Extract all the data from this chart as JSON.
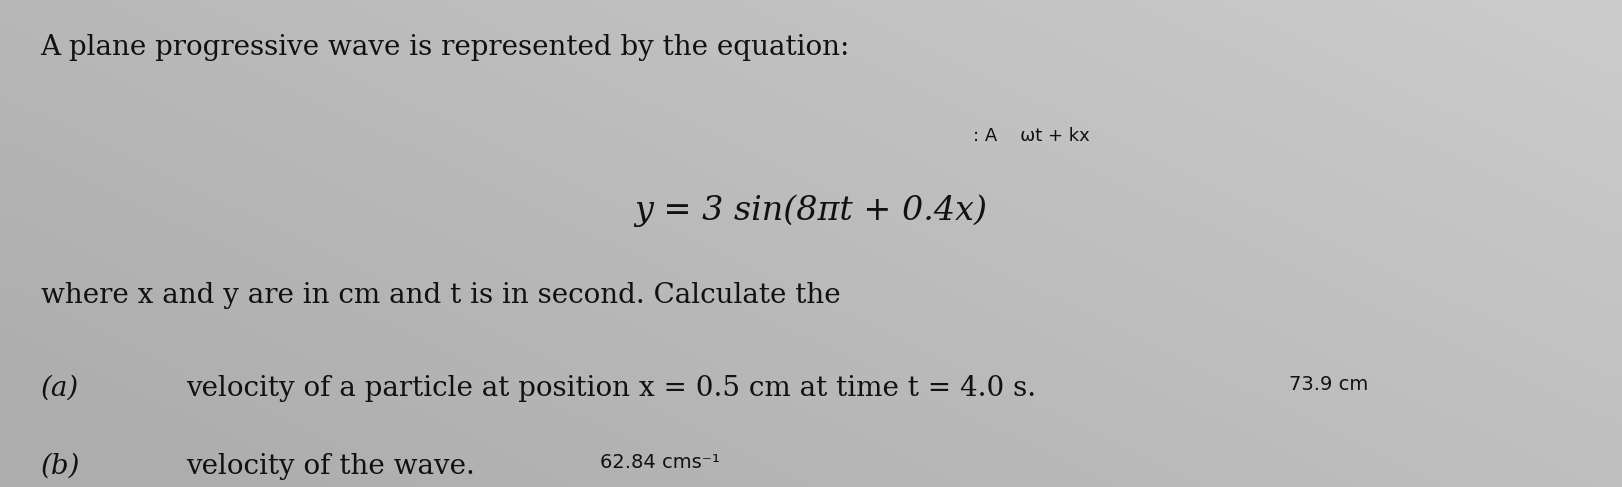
{
  "background_color": "#c8c8c8",
  "fig_width": 16.22,
  "fig_height": 4.87,
  "line1": "A plane progressive wave is represented by the equation:",
  "annotation_above": ": A    ωt + kx",
  "equation": "y = 3 sin(8πt + 0.4x)",
  "line3": "where x and y are in cm and t is in second. Calculate the",
  "part_a_label": "(a)",
  "part_a_text": "velocity of a particle at position x = 0.5 cm at time t = 4.0 s.",
  "part_a_answer": "73.9 cm",
  "part_b_label": "(b)",
  "part_b_text": "velocity of the wave.",
  "part_b_answer": "62.84 cms⁻¹",
  "text_color": "#111111",
  "font_size_main": 20,
  "font_size_eq": 24,
  "font_size_annot": 14,
  "font_size_answer": 14
}
